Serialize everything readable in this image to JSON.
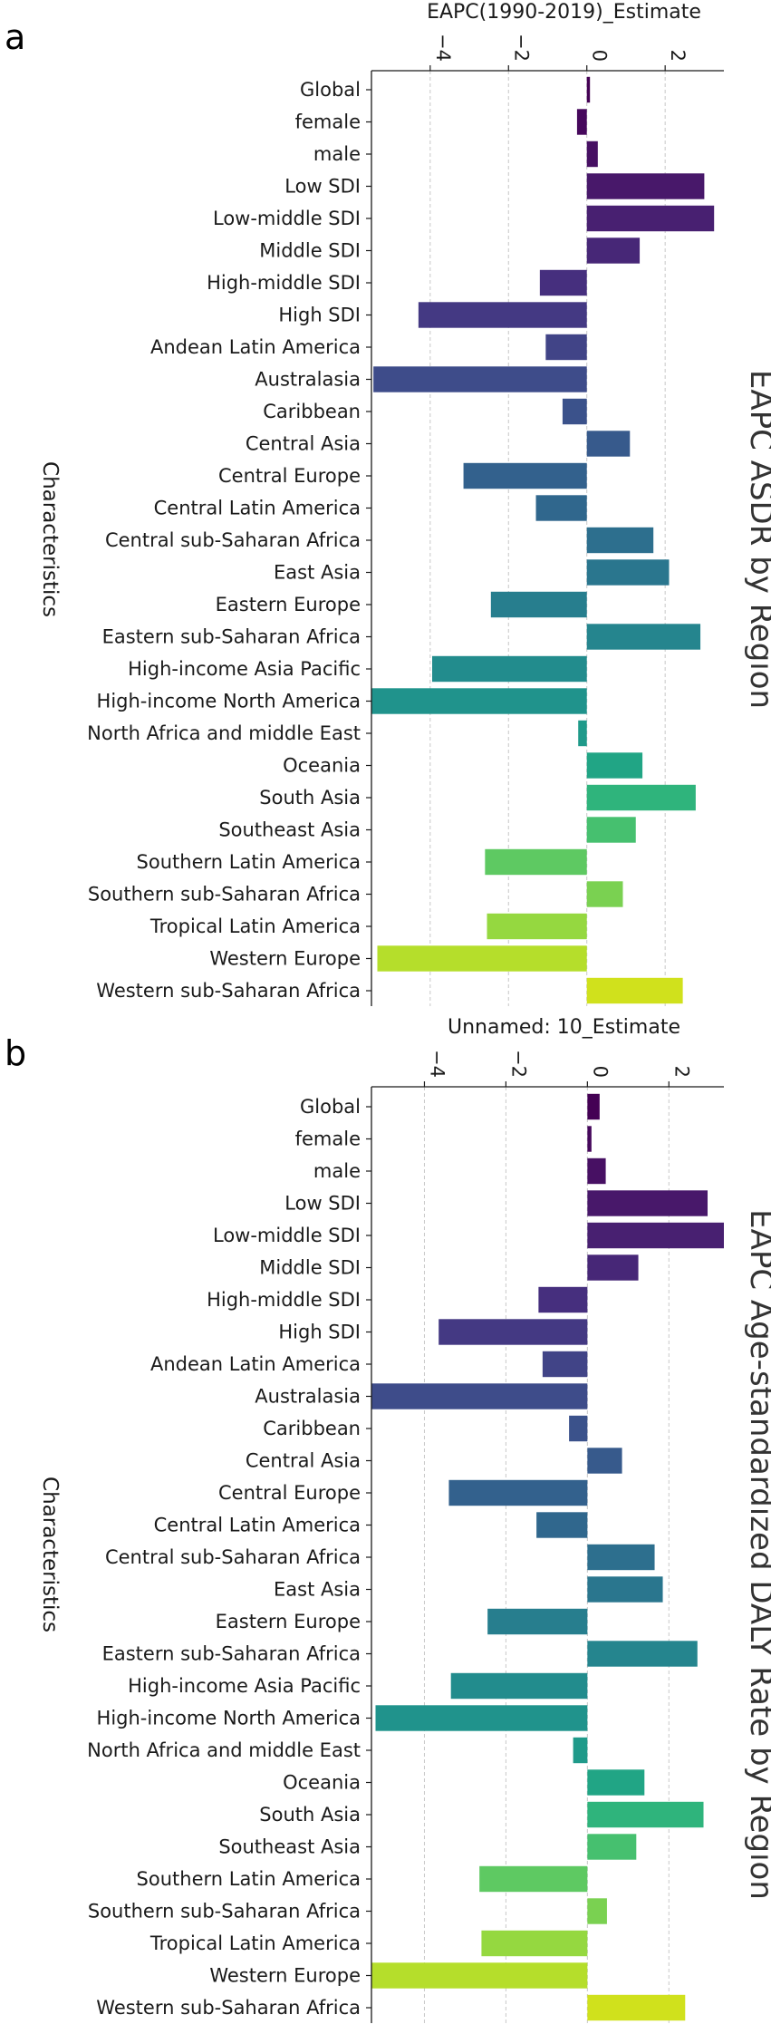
{
  "chart_data": [
    {
      "type": "bar",
      "orientation": "horizontal",
      "panel_label": "a",
      "title": "EAPC ASDR by Region",
      "xlabel": "EAPC(1990-2019)_Estimate",
      "ylabel": "Characteristics",
      "xlim": [
        -5.5,
        3.5
      ],
      "xticks": [
        -4,
        -2,
        0,
        2
      ],
      "xtick_labels": [
        "−4",
        "−2",
        "0",
        "2"
      ],
      "grid": "vertical dashed",
      "categories": [
        "Global",
        "female",
        "male",
        "Low SDI",
        "Low-middle SDI",
        "Middle SDI",
        "High-middle SDI",
        "High SDI",
        "Andean Latin America",
        "Australasia",
        "Caribbean",
        "Central Asia",
        "Central Europe",
        "Central Latin America",
        "Central sub-Saharan Africa",
        "East Asia",
        "Eastern Europe",
        "Eastern sub-Saharan Africa",
        "High-income Asia Pacific",
        "High-income North America",
        "North Africa and middle East",
        "Oceania",
        "South Asia",
        "Southeast Asia",
        "Southern Latin America",
        "Southern sub-Saharan Africa",
        "Tropical Latin America",
        "Western Europe",
        "Western sub-Saharan Africa"
      ],
      "values": [
        0.08,
        -0.25,
        0.28,
        3.0,
        3.25,
        1.35,
        -1.2,
        -4.3,
        -1.05,
        -5.45,
        -0.62,
        1.1,
        -3.15,
        -1.3,
        1.7,
        2.1,
        -2.45,
        2.9,
        -3.95,
        -5.5,
        -0.22,
        1.42,
        2.78,
        1.25,
        -2.6,
        0.92,
        -2.55,
        -5.35,
        2.45
      ]
    },
    {
      "type": "bar",
      "orientation": "horizontal",
      "panel_label": "b",
      "title": "EAPC Age-standardized DALY Rate by Region",
      "xlabel": "Unnamed: 10_Estimate",
      "ylabel": "Characteristics",
      "xlim": [
        -5.3,
        3.35
      ],
      "xticks": [
        -4,
        -2,
        0,
        2
      ],
      "xtick_labels": [
        "−4",
        "−2",
        "0",
        "2"
      ],
      "grid": "vertical dashed",
      "categories": [
        "Global",
        "female",
        "male",
        "Low SDI",
        "Low-middle SDI",
        "Middle SDI",
        "High-middle SDI",
        "High SDI",
        "Andean Latin America",
        "Australasia",
        "Caribbean",
        "Central Asia",
        "Central Europe",
        "Central Latin America",
        "Central sub-Saharan Africa",
        "East Asia",
        "Eastern Europe",
        "Eastern sub-Saharan Africa",
        "High-income Asia Pacific",
        "High-income North America",
        "North Africa and middle East",
        "Oceania",
        "South Asia",
        "Southeast Asia",
        "Southern Latin America",
        "Southern sub-Saharan Africa",
        "Tropical Latin America",
        "Western Europe",
        "Western sub-Saharan Africa"
      ],
      "values": [
        0.3,
        0.1,
        0.45,
        2.95,
        3.35,
        1.25,
        -1.2,
        -3.65,
        -1.1,
        -5.3,
        -0.45,
        0.85,
        -3.4,
        -1.25,
        1.65,
        1.85,
        -2.45,
        2.7,
        -3.35,
        -5.2,
        -0.35,
        1.4,
        2.85,
        1.2,
        -2.65,
        0.48,
        -2.6,
        -5.3,
        2.4
      ]
    }
  ],
  "palette": [
    "#440154",
    "#46085c",
    "#471063",
    "#48186a",
    "#482071",
    "#472777",
    "#462f7e",
    "#443983",
    "#414487",
    "#3e4c8a",
    "#3b528b",
    "#375a8c",
    "#33618d",
    "#30678d",
    "#2d6f8e",
    "#2a768e",
    "#277e8e",
    "#25858e",
    "#228c8d",
    "#20938c",
    "#1f9a8a",
    "#21a585",
    "#2fb47c",
    "#46c06f",
    "#5ec962",
    "#7ad151",
    "#95d840",
    "#b5de2b",
    "#d0e11c"
  ]
}
